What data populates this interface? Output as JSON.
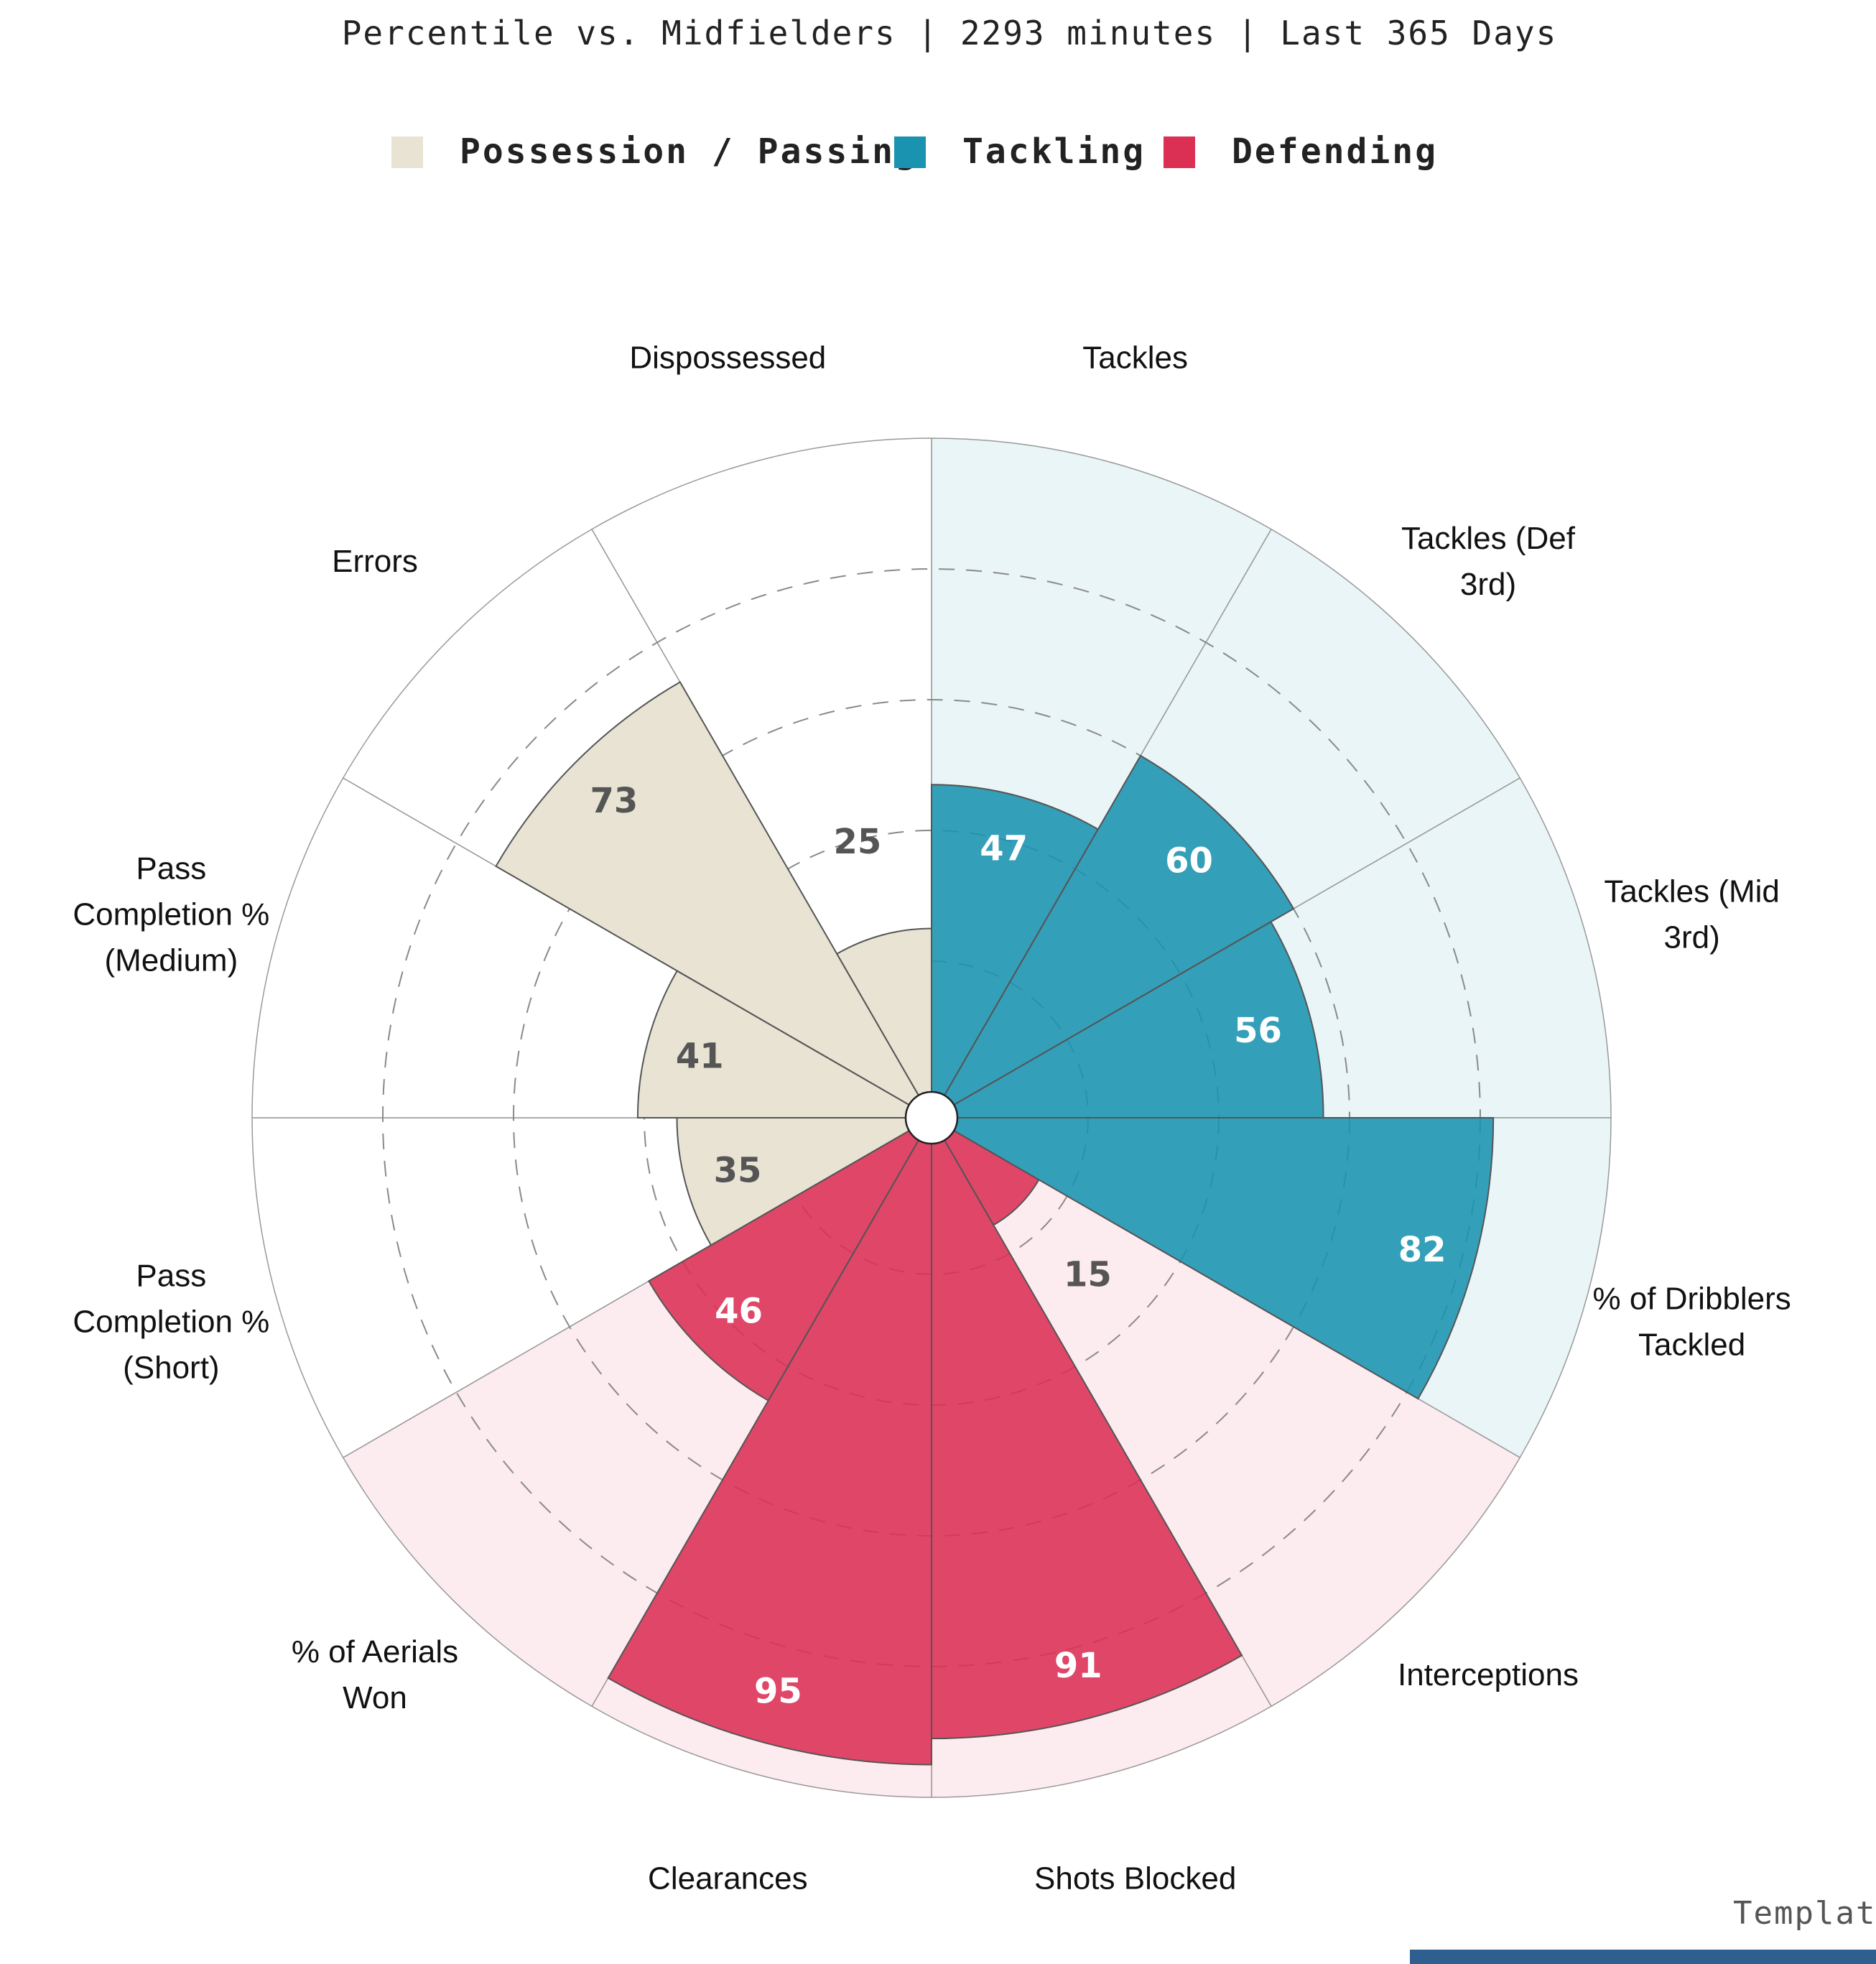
{
  "chart_data": {
    "type": "pizza",
    "subtitle": "Percentile vs. Midfielders | 2293 minutes | Last 365 Days",
    "rlim": [
      0,
      100
    ],
    "grid": true,
    "legend_placement": "top-center",
    "groups": [
      {
        "name": "Possession / Passing",
        "color": "#e8e3d3",
        "bg": "#ffffff",
        "text_color": "#555555"
      },
      {
        "name": "Tackling",
        "color": "#1a93b0",
        "bg": "#e9f5f7",
        "text_color": "#ffffff"
      },
      {
        "name": "Defending",
        "color": "#dc2f54",
        "bg": "#fcebef",
        "text_color": "#ffffff"
      }
    ],
    "categories": [
      {
        "label": "Tackles",
        "value": 47,
        "group": 1
      },
      {
        "label": "Tackles (Def 3rd)",
        "value": 60,
        "group": 1
      },
      {
        "label": "Tackles (Mid 3rd)",
        "value": 56,
        "group": 1
      },
      {
        "label": "% of Dribblers Tackled",
        "value": 82,
        "group": 1
      },
      {
        "label": "Interceptions",
        "value": 15,
        "group": 2
      },
      {
        "label": "Shots Blocked",
        "value": 91,
        "group": 2
      },
      {
        "label": "Clearances",
        "value": 95,
        "group": 2
      },
      {
        "label": "% of Aerials Won",
        "value": 46,
        "group": 2
      },
      {
        "label": "Pass Completion % (Short)",
        "value": 35,
        "group": 0
      },
      {
        "label": "Pass Completion % (Medium)",
        "value": 41,
        "group": 0
      },
      {
        "label": "Errors",
        "value": 73,
        "group": 0
      },
      {
        "label": "Dispossessed",
        "value": 25,
        "group": 0
      }
    ]
  },
  "footer": {
    "template_text": "Templat"
  }
}
